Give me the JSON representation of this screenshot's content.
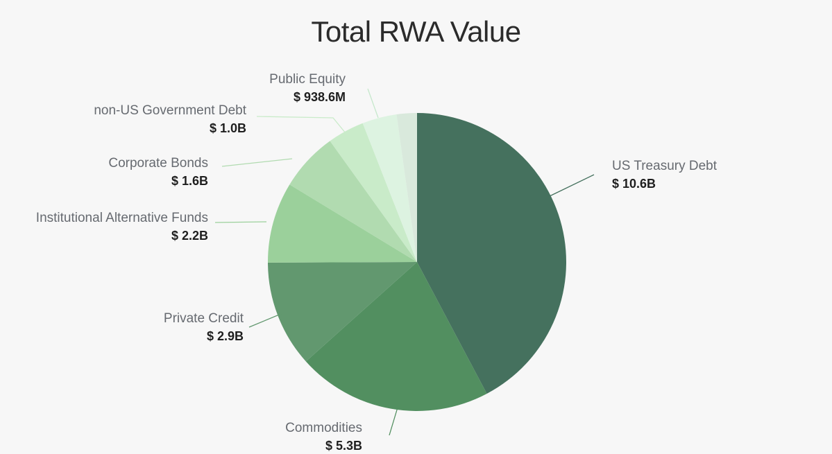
{
  "chart_data": {
    "type": "pie",
    "title": "Total RWA Value",
    "slices": [
      {
        "label": "US Treasury Debt",
        "value_label": "$ 10.6B",
        "value": 10.6,
        "color": "#45715e"
      },
      {
        "label": "Commodities",
        "value_label": "$ 5.3B",
        "value": 5.3,
        "color": "#528f60"
      },
      {
        "label": "Private Credit",
        "value_label": "$ 2.9B",
        "value": 2.9,
        "color": "#62986f"
      },
      {
        "label": "Institutional Alternative Funds",
        "value_label": "$ 2.2B",
        "value": 2.2,
        "color": "#9bd09b"
      },
      {
        "label": "Corporate Bonds",
        "value_label": "$ 1.6B",
        "value": 1.6,
        "color": "#b1dbb0"
      },
      {
        "label": "non-US Government Debt",
        "value_label": "$ 1.0B",
        "value": 1.0,
        "color": "#c9ebc9"
      },
      {
        "label": "Public Equity",
        "value_label": "$ 938.6M",
        "value": 0.9386,
        "color": "#ddf3e1"
      },
      {
        "label": "",
        "value_label": "",
        "value": 0.55,
        "color": "#d9e9dc"
      }
    ]
  }
}
